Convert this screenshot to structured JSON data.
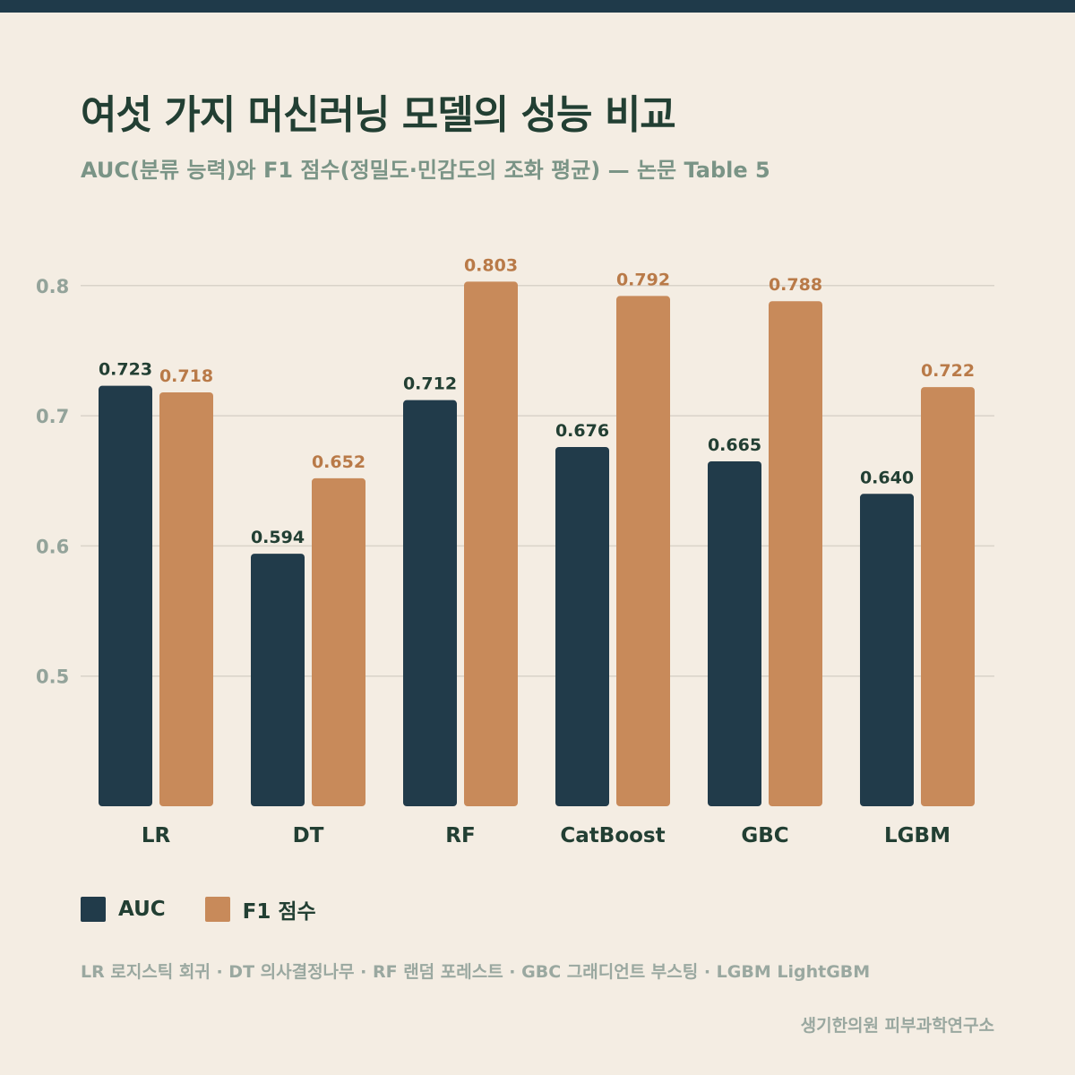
{
  "header": {
    "title": "여섯 가지 머신러닝 모델의 성능 비교",
    "subtitle": "AUC(분류 능력)와 F1 점수(정밀도·민감도의 조화 평균) — 논문 Table 5"
  },
  "colors": {
    "background": "#f4ede3",
    "top_bar": "#1f3a4a",
    "auc": "#213b4a",
    "f1": "#c88a5a",
    "title": "#223f33",
    "muted": "#7a9486"
  },
  "chart_data": {
    "type": "bar",
    "categories": [
      "LR",
      "DT",
      "RF",
      "CatBoost",
      "GBC",
      "LGBM"
    ],
    "series": [
      {
        "name": "AUC",
        "values": [
          0.723,
          0.594,
          0.712,
          0.676,
          0.665,
          0.64
        ],
        "labels": [
          "0.723",
          "0.594",
          "0.712",
          "0.676",
          "0.665",
          "0.640"
        ]
      },
      {
        "name": "F1 점수",
        "values": [
          0.718,
          0.652,
          0.803,
          0.792,
          0.788,
          0.722
        ],
        "labels": [
          "0.718",
          "0.652",
          "0.803",
          "0.792",
          "0.788",
          "0.722"
        ]
      }
    ],
    "yticks": [
      "0.5",
      "0.6",
      "0.7",
      "0.8"
    ],
    "ylim": [
      0.4,
      0.8267
    ],
    "grid": true,
    "legend_position": "bottom-left"
  },
  "legend": {
    "auc_label": "AUC",
    "f1_label": "F1 점수"
  },
  "footnote": "LR 로지스틱 회귀 · DT 의사결정나무 · RF 랜덤 포레스트 · GBC 그래디언트 부스팅 · LGBM LightGBM",
  "credit": "생기한의원 피부과학연구소"
}
